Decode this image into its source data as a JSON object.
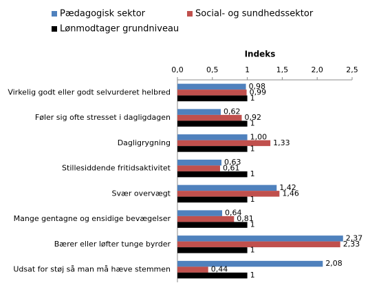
{
  "chart_data": {
    "type": "hbar",
    "title": "Indeks",
    "categories": [
      "Virkelig godt eller godt selvurderet helbred",
      "Føler sig ofte stresset i dagligdagen",
      "Dagligrygning",
      "Stillesiddende fritidsaktivitet",
      "Svær overvægt",
      "Mange gentagne og ensidige bevægelser",
      "Bærer eller løfter tunge byrder",
      "Udsat for støj så man må hæve stemmen"
    ],
    "series": [
      {
        "name": "Pædagogisk sektor",
        "color": "#4f81bd",
        "values": [
          0.98,
          0.62,
          1.0,
          0.63,
          1.42,
          0.64,
          2.37,
          2.08
        ],
        "value_labels": [
          "0,98",
          "0,62",
          "1,00",
          "0,63",
          "1,42",
          "0,64",
          "2,37",
          "2,08"
        ]
      },
      {
        "name": "Social- og sundhedssektor",
        "color": "#c0504d",
        "values": [
          0.99,
          0.92,
          1.33,
          0.61,
          1.46,
          0.81,
          2.33,
          0.44
        ],
        "value_labels": [
          "0,99",
          "0,92",
          "1,33",
          "0,61",
          "1,46",
          "0,81",
          "2,33",
          "0,44"
        ]
      },
      {
        "name": "Lønmodtager grundniveau",
        "color": "#000000",
        "values": [
          1,
          1,
          1,
          1,
          1,
          1,
          1,
          1
        ]
      }
    ],
    "xlim": [
      0,
      2.5
    ],
    "xticks": [
      {
        "value": 0,
        "label": "0,0"
      },
      {
        "value": 0.5,
        "label": "0,5"
      },
      {
        "value": 1,
        "label": "1"
      },
      {
        "value": 1.5,
        "label": "1,5"
      },
      {
        "value": 2,
        "label": "2,0"
      },
      {
        "value": 2.5,
        "label": "2,5"
      }
    ],
    "grid": false
  }
}
